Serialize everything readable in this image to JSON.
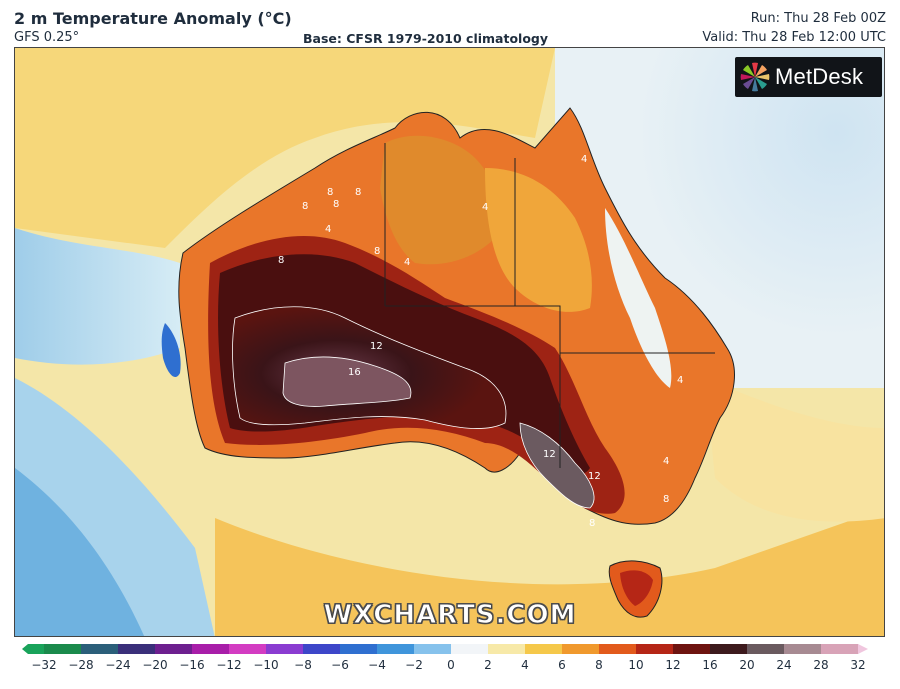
{
  "header": {
    "title": "2 m Temperature Anomaly (°C)",
    "model": "GFS 0.25°",
    "base": "Base: CFSR 1979-2010 climatology",
    "run": "Run: Thu 28 Feb 00Z",
    "valid": "Valid: Thu 28 Feb 12:00 UTC"
  },
  "logo": {
    "text": "MetDesk"
  },
  "watermark": "WXCHARTS.COM",
  "contour_labels": [
    "4",
    "4",
    "4",
    "4",
    "4",
    "4",
    "8",
    "8",
    "8",
    "8",
    "8",
    "8",
    "8",
    "8",
    "12",
    "12",
    "12",
    "16"
  ],
  "colorbar": {
    "ticks": [
      "−32",
      "−28",
      "−24",
      "−20",
      "−16",
      "−12",
      "−10",
      "−8",
      "−6",
      "−4",
      "−2",
      "0",
      "2",
      "4",
      "6",
      "8",
      "10",
      "12",
      "16",
      "20",
      "24",
      "28",
      "32"
    ],
    "colors": [
      "#1a8a4c",
      "#2b5f7a",
      "#3a2f7a",
      "#6d1f8f",
      "#a81ea9",
      "#d33cc2",
      "#8a3cd1",
      "#3d46c9",
      "#2f6fd0",
      "#3f95db",
      "#86c2ec",
      "#f2f5f8",
      "#f7e9a8",
      "#f5c84a",
      "#f0992d",
      "#e25a1c",
      "#b52616",
      "#6e1410",
      "#3d1a1d",
      "#6a5a5f",
      "#a78a92",
      "#d8a3b7",
      "#f0c6de"
    ]
  }
}
